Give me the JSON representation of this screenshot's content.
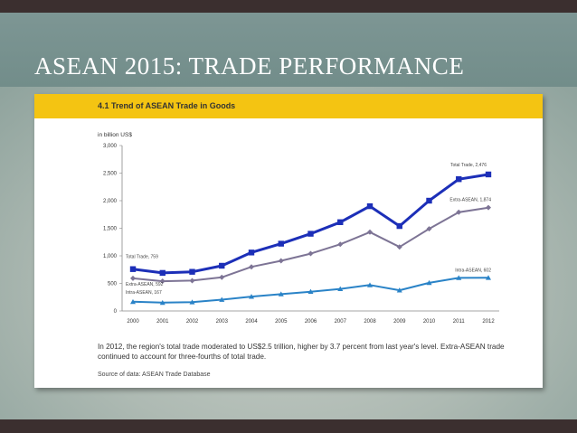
{
  "slide": {
    "title": "ASEAN 2015: TRADE PERFORMANCE"
  },
  "panel": {
    "header": "4.1 Trend of ASEAN Trade in Goods",
    "caption": "In 2012, the region's total trade moderated to US$2.5 trillion, higher by 3.7 percent from last year's level. Extra-ASEAN trade continued to account for three-fourths of total trade.",
    "source": "Source of data:  ASEAN Trade Database"
  },
  "colors": {
    "header_bg": "#f4c412",
    "total_trade": "#1c2fb8",
    "extra_asean": "#7d7495",
    "intra_asean": "#2a83c7"
  },
  "chart_data": {
    "type": "line",
    "ylabel": "in billion US$",
    "xlabel": "",
    "ylim": [
      0,
      3000
    ],
    "yticks": [
      0,
      500,
      1000,
      1500,
      2000,
      2500,
      3000
    ],
    "ytick_labels": [
      "0",
      "500",
      "1,000",
      "1,500",
      "2,000",
      "2,500",
      "3,000"
    ],
    "x": [
      "2000",
      "2001",
      "2002",
      "2003",
      "2004",
      "2005",
      "2006",
      "2007",
      "2008",
      "2009",
      "2010",
      "2011",
      "2012"
    ],
    "series": [
      {
        "key": "total",
        "values": [
          759,
          690,
          710,
          820,
          1060,
          1220,
          1400,
          1610,
          1900,
          1540,
          2000,
          2390,
          2476
        ],
        "annotation": "Total Trade, 2,476",
        "start_annotation": "Total Trade, 759"
      },
      {
        "key": "extra",
        "values": [
          592,
          540,
          550,
          610,
          800,
          910,
          1040,
          1210,
          1430,
          1160,
          1490,
          1790,
          1874
        ],
        "annotation": "Extra-ASEAN, 1,874",
        "start_annotation": "Extra-ASEAN, 592"
      },
      {
        "key": "intra",
        "values": [
          167,
          150,
          160,
          205,
          260,
          305,
          350,
          400,
          470,
          375,
          510,
          600,
          602
        ],
        "annotation": "Intra-ASEAN, 602",
        "start_annotation": "Intra-ASEAN, 167"
      }
    ],
    "grid": false,
    "legend": "none"
  }
}
